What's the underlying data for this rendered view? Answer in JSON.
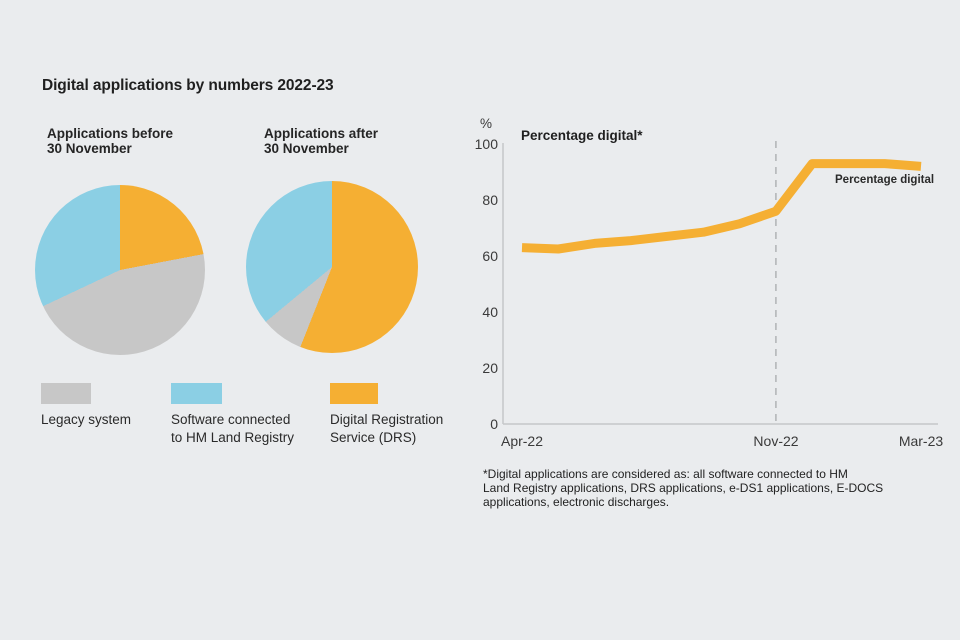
{
  "figure_title": "Digital applications by numbers 2022-23",
  "colors": {
    "background": "#EAECEE",
    "orange": "#F5AF33",
    "blue": "#8BCFE4",
    "gray": "#C7C7C7",
    "axis": "#C5C7C9",
    "marker_dash": "#B4B6B8"
  },
  "legend": {
    "items": [
      {
        "color": "gray",
        "lines": [
          "Legacy system"
        ]
      },
      {
        "color": "blue",
        "lines": [
          "Software connected",
          "to HM Land Registry"
        ]
      },
      {
        "color": "orange",
        "lines": [
          "Digital Registration",
          "Service (DRS)"
        ]
      }
    ]
  },
  "footnote": {
    "lines": [
      "*Digital applications are considered as: all software connected to HM",
      "Land Registry applications, DRS applications, e-DS1 applications, E-DOCS",
      "applications, electronic discharges."
    ]
  },
  "chart_data": [
    {
      "type": "pie",
      "title": "Applications before 30 November",
      "title_lines": [
        "Applications before",
        "30 November"
      ],
      "slices": [
        {
          "label": "Digital Registration Service (DRS)",
          "color": "orange",
          "percent": 22
        },
        {
          "label": "Legacy system",
          "color": "gray",
          "percent": 46
        },
        {
          "label": "Software connected to HM Land Registry",
          "color": "blue",
          "percent": 32
        }
      ]
    },
    {
      "type": "pie",
      "title": "Applications after 30 November",
      "title_lines": [
        "Applications after",
        "30 November"
      ],
      "slices": [
        {
          "label": "Digital Registration Service (DRS)",
          "color": "orange",
          "percent": 56
        },
        {
          "label": "Legacy system",
          "color": "gray",
          "percent": 8
        },
        {
          "label": "Software connected to HM Land Registry",
          "color": "blue",
          "percent": 36
        }
      ]
    },
    {
      "type": "line",
      "title": "Percentage digital*",
      "unit": "%",
      "series_label": "Percentage digital",
      "x": [
        "Apr-22",
        "May-22",
        "Jun-22",
        "Jul-22",
        "Aug-22",
        "Sep-22",
        "Oct-22",
        "Nov-22",
        "Dec-22",
        "Jan-23",
        "Feb-23",
        "Mar-23"
      ],
      "values": [
        63,
        62.5,
        64.5,
        65.5,
        67,
        68.5,
        71.5,
        76,
        93,
        93,
        93,
        92
      ],
      "ylim": [
        0,
        100
      ],
      "yticks": [
        "100",
        "80",
        "60",
        "40",
        "20",
        "0"
      ],
      "xtick_labels": [
        "Apr-22",
        "Nov-22",
        "Mar-23"
      ],
      "marker": {
        "x": "Nov-22",
        "style": "dashed-vertical-line"
      },
      "grid": false,
      "legend_position": "inline-right"
    }
  ]
}
